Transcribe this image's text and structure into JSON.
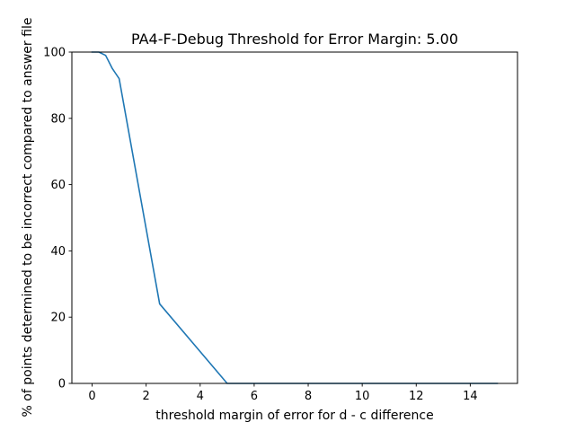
{
  "chart_data": {
    "type": "line",
    "title": "PA4-F-Debug Threshold for Error Margin: 5.00",
    "xlabel": "threshold margin of error for d - c difference",
    "ylabel": "% of points determined to be incorrect compared to answer file",
    "xlim": [
      -0.75,
      15.75
    ],
    "ylim": [
      0,
      100
    ],
    "xticks": [
      0,
      2,
      4,
      6,
      8,
      10,
      12,
      14
    ],
    "yticks": [
      0,
      20,
      40,
      60,
      80,
      100
    ],
    "grid": false,
    "series": [
      {
        "color": "#1f77b4",
        "x": [
          0,
          0.25,
          0.5,
          0.75,
          1.0,
          2.5,
          5.0,
          7.5,
          10.0,
          12.5,
          15.0
        ],
        "y": [
          100,
          100,
          99,
          95,
          92,
          24,
          0,
          0,
          0,
          0,
          0
        ]
      }
    ]
  }
}
